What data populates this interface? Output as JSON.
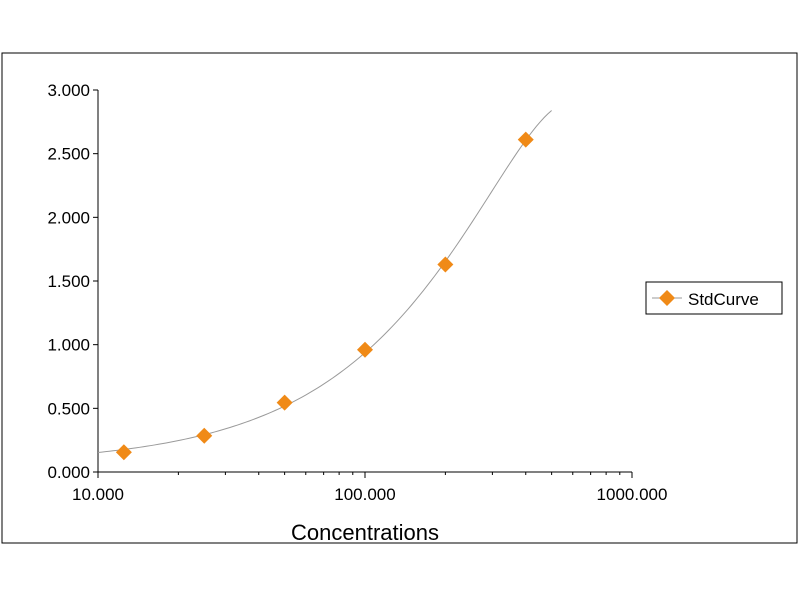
{
  "chart_data": {
    "type": "scatter",
    "title": "",
    "xlabel": "Concentrations",
    "ylabel": "",
    "x_scale": "log",
    "xlim": [
      10,
      1000
    ],
    "ylim": [
      0,
      3
    ],
    "x_ticks": [
      10,
      100,
      1000
    ],
    "x_tick_labels": [
      "10.000",
      "100.000",
      "1000.000"
    ],
    "y_ticks": [
      0,
      0.5,
      1,
      1.5,
      2,
      2.5,
      3
    ],
    "y_tick_labels": [
      "0.000",
      "0.500",
      "1.000",
      "1.500",
      "2.000",
      "2.500",
      "3.000"
    ],
    "grid": false,
    "legend_position": "right",
    "series": [
      {
        "name": "StdCurve",
        "marker": "diamond",
        "color": "#f08a17",
        "x": [
          12.5,
          25,
          50,
          100,
          200,
          400
        ],
        "y": [
          0.155,
          0.285,
          0.545,
          0.96,
          1.63,
          2.61
        ]
      }
    ],
    "trendline": {
      "color": "#9a9a9a",
      "x_range": [
        10,
        500
      ]
    }
  }
}
